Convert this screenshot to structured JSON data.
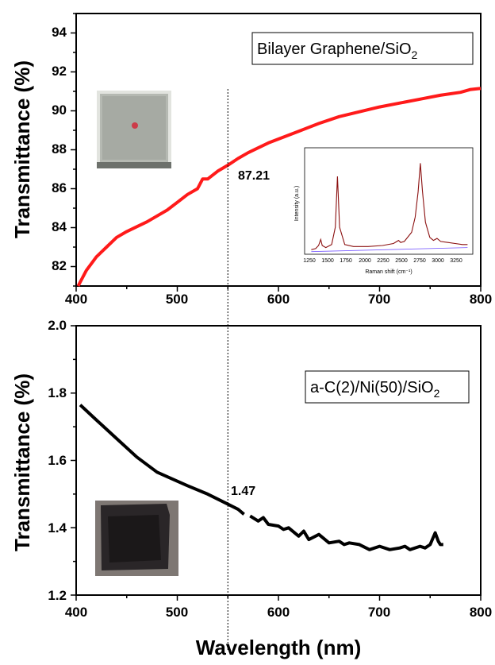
{
  "chart_data": [
    {
      "type": "line",
      "legend": "Bilayer Graphene/SiO",
      "legend_subscript": "2",
      "ylabel": "Transmittance (%)",
      "xlabel": "",
      "xlim": [
        400,
        800
      ],
      "ylim": [
        81,
        95
      ],
      "x_ticks": [
        "400",
        "500",
        "600",
        "700",
        "800"
      ],
      "y_ticks": [
        "82",
        "84",
        "86",
        "88",
        "90",
        "92",
        "94"
      ],
      "series_color": "#ff1a1a",
      "annotation": "87.21",
      "marker_x": 550,
      "x": [
        402,
        410,
        420,
        430,
        440,
        450,
        460,
        470,
        480,
        490,
        500,
        510,
        520,
        525,
        530,
        540,
        550,
        560,
        570,
        580,
        590,
        600,
        620,
        640,
        660,
        680,
        700,
        720,
        740,
        760,
        780,
        790,
        800
      ],
      "y": [
        80.9,
        81.8,
        82.5,
        83.0,
        83.5,
        83.8,
        84.05,
        84.3,
        84.6,
        84.9,
        85.3,
        85.7,
        86.0,
        86.5,
        86.5,
        86.9,
        87.21,
        87.55,
        87.85,
        88.1,
        88.35,
        88.55,
        88.95,
        89.35,
        89.7,
        89.95,
        90.2,
        90.4,
        90.6,
        90.8,
        90.95,
        91.1,
        91.15
      ],
      "inset": {
        "xlabel": "Raman shift (cm⁻¹)",
        "ylabel": "Intensity (a.u.)",
        "x_ticks": [
          "1250",
          "1500",
          "1750",
          "2000",
          "2250",
          "2500",
          "2750",
          "3000",
          "3250"
        ],
        "x": [
          1220,
          1280,
          1320,
          1350,
          1370,
          1420,
          1500,
          1550,
          1580,
          1610,
          1680,
          1800,
          2000,
          2200,
          2350,
          2420,
          2450,
          2500,
          2600,
          2650,
          2690,
          2720,
          2750,
          2790,
          2850,
          2900,
          2950,
          3000,
          3100,
          3200,
          3300,
          3370
        ],
        "y": [
          0.03,
          0.04,
          0.07,
          0.13,
          0.07,
          0.05,
          0.08,
          0.25,
          0.75,
          0.25,
          0.08,
          0.06,
          0.06,
          0.07,
          0.09,
          0.12,
          0.1,
          0.11,
          0.2,
          0.35,
          0.6,
          0.88,
          0.6,
          0.3,
          0.15,
          0.12,
          0.14,
          0.11,
          0.1,
          0.09,
          0.08,
          0.08
        ]
      }
    },
    {
      "type": "line",
      "legend": "a-C(2)/Ni(50)/SiO",
      "legend_subscript": "2",
      "ylabel": "Transmittance (%)",
      "xlabel": "Wavelength (nm)",
      "xlim": [
        400,
        800
      ],
      "ylim": [
        1.2,
        2.0
      ],
      "x_ticks": [
        "400",
        "500",
        "600",
        "700",
        "800"
      ],
      "y_ticks": [
        "1.2",
        "1.4",
        "1.6",
        "1.8",
        "2.0"
      ],
      "series_color": "#000000",
      "annotation": "1.47",
      "marker_x": 550,
      "segments": [
        {
          "x": [
            404,
            420,
            440,
            460,
            480,
            495,
            510,
            530,
            550,
            560,
            566
          ],
          "y": [
            1.765,
            1.72,
            1.665,
            1.61,
            1.565,
            1.545,
            1.525,
            1.5,
            1.47,
            1.455,
            1.44
          ]
        },
        {
          "x": [
            572,
            580,
            585,
            590,
            600,
            605,
            610,
            620,
            625,
            630,
            640,
            650,
            660,
            665,
            670,
            680,
            690,
            700,
            710,
            720,
            725,
            730,
            740,
            745,
            750,
            755,
            758,
            760,
            763
          ],
          "y": [
            1.435,
            1.42,
            1.43,
            1.41,
            1.405,
            1.395,
            1.4,
            1.375,
            1.39,
            1.365,
            1.38,
            1.355,
            1.36,
            1.35,
            1.355,
            1.35,
            1.335,
            1.345,
            1.335,
            1.34,
            1.345,
            1.335,
            1.345,
            1.34,
            1.35,
            1.385,
            1.36,
            1.35,
            1.35
          ]
        }
      ]
    }
  ]
}
